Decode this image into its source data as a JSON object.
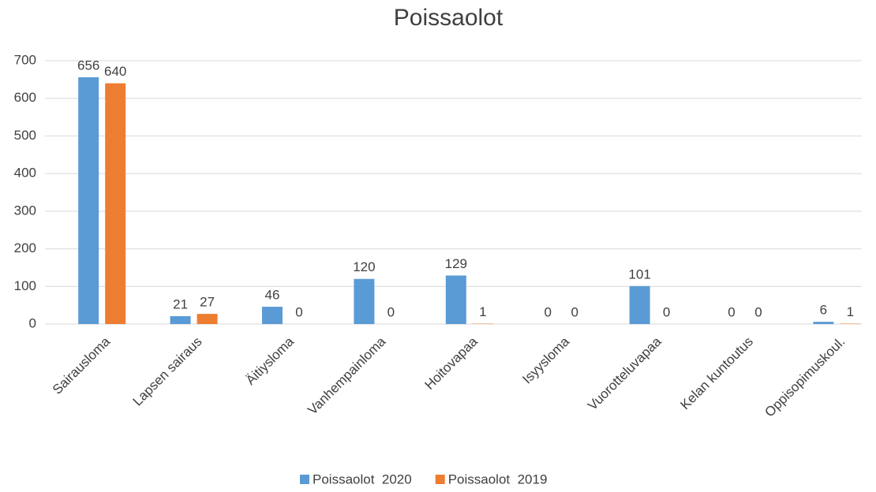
{
  "chart_data": {
    "type": "bar",
    "title": "Poissaolot",
    "categories": [
      "Sairausloma",
      "Lapsen sairaus",
      "Äitiysloma",
      "Vanhempainloma",
      "Hoitovapaa",
      "Isyysloma",
      "Vuorotteluvapaa",
      "Kelan kuntoutus",
      "Oppisopimuskoul."
    ],
    "series": [
      {
        "name": "Poissaolot  2020",
        "color": "#5b9bd5",
        "values": [
          656,
          21,
          46,
          120,
          129,
          0,
          101,
          0,
          6
        ]
      },
      {
        "name": "Poissaolot  2019",
        "color": "#ed7d31",
        "values": [
          640,
          27,
          0,
          0,
          1,
          0,
          0,
          0,
          1
        ]
      }
    ],
    "ylim": [
      0,
      700
    ],
    "yticks": [
      0,
      100,
      200,
      300,
      400,
      500,
      600,
      700
    ],
    "grid": true,
    "legend": "bottom"
  }
}
